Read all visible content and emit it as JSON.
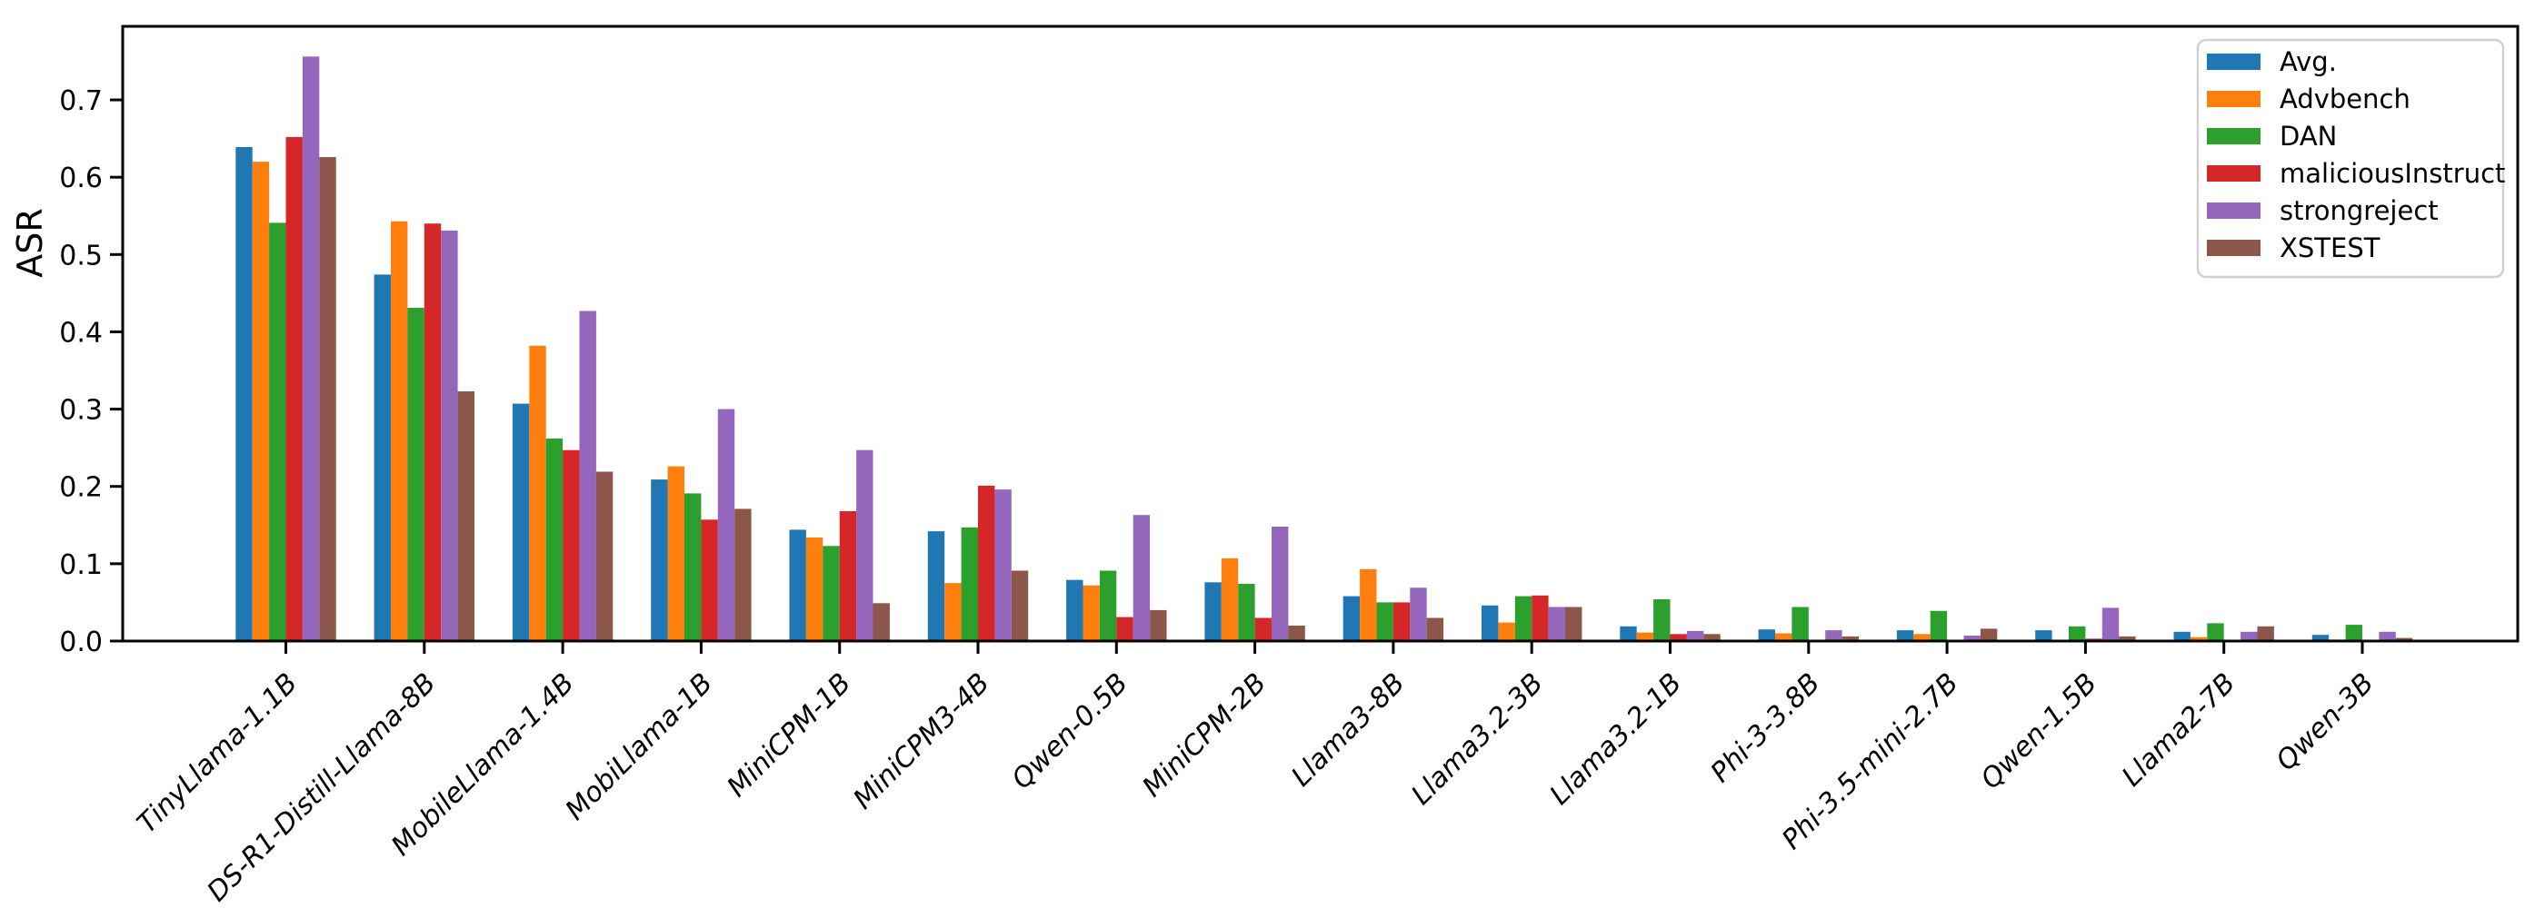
{
  "chart_data": {
    "type": "bar",
    "title": "",
    "xlabel": "",
    "ylabel": "ASR",
    "ylim": [
      0,
      0.796
    ],
    "yticks": [
      "0.0",
      "0.1",
      "0.2",
      "0.3",
      "0.4",
      "0.5",
      "0.6",
      "0.7"
    ],
    "grid": false,
    "legend_position": "upper right",
    "categories": [
      "TinyLlama-1.1B",
      "DS-R1-Distill-Llama-8B",
      "MobileLlama-1.4B",
      "MobiLlama-1B",
      "MiniCPM-1B",
      "MiniCPM3-4B",
      "Qwen-0.5B",
      "MiniCPM-2B",
      "Llama3-8B",
      "Llama3.2-3B",
      "Llama3.2-1B",
      "Phi-3-3.8B",
      "Phi-3.5-mini-2.7B",
      "Qwen-1.5B",
      "Llama2-7B",
      "Qwen-3B"
    ],
    "series": [
      {
        "name": "Avg.",
        "color": "#1f77b4",
        "values": [
          0.639,
          0.474,
          0.307,
          0.209,
          0.144,
          0.142,
          0.079,
          0.076,
          0.058,
          0.046,
          0.019,
          0.015,
          0.014,
          0.014,
          0.012,
          0.008
        ]
      },
      {
        "name": "Advbench",
        "color": "#ff7f0e",
        "values": [
          0.62,
          0.543,
          0.382,
          0.226,
          0.134,
          0.075,
          0.072,
          0.107,
          0.093,
          0.024,
          0.011,
          0.01,
          0.009,
          0.001,
          0.005,
          0.002
        ]
      },
      {
        "name": "DAN",
        "color": "#2ca02c",
        "values": [
          0.541,
          0.431,
          0.262,
          0.191,
          0.123,
          0.147,
          0.091,
          0.074,
          0.05,
          0.058,
          0.054,
          0.044,
          0.039,
          0.019,
          0.023,
          0.021
        ]
      },
      {
        "name": "maliciousInstruct",
        "color": "#d62728",
        "values": [
          0.652,
          0.54,
          0.247,
          0.157,
          0.168,
          0.201,
          0.031,
          0.03,
          0.05,
          0.059,
          0.009,
          0.001,
          0.001,
          0.003,
          0.001,
          0.001
        ]
      },
      {
        "name": "strongreject",
        "color": "#9467bd",
        "values": [
          0.756,
          0.531,
          0.427,
          0.3,
          0.247,
          0.196,
          0.163,
          0.148,
          0.069,
          0.044,
          0.013,
          0.014,
          0.007,
          0.043,
          0.012,
          0.012
        ]
      },
      {
        "name": "XSTEST",
        "color": "#8c564b",
        "values": [
          0.626,
          0.323,
          0.219,
          0.171,
          0.049,
          0.091,
          0.04,
          0.02,
          0.03,
          0.044,
          0.009,
          0.006,
          0.016,
          0.006,
          0.019,
          0.004
        ]
      }
    ]
  }
}
